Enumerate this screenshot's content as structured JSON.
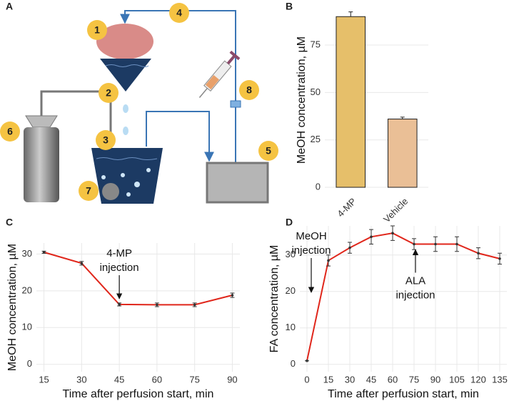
{
  "panel_labels": [
    "A",
    "B",
    "C",
    "D"
  ],
  "diagram": {
    "labels": [
      "1",
      "2",
      "3",
      "4",
      "5",
      "6",
      "7",
      "8"
    ]
  },
  "chart_data": [
    {
      "type": "bar",
      "ylabel": "MeOH concentration, µM",
      "categories": [
        "4-MP",
        "Vehicle"
      ],
      "values": [
        90,
        36
      ],
      "errors": [
        2.5,
        1
      ],
      "colors": [
        "#e6bf6a",
        "#eabf96"
      ],
      "ylim": [
        -3,
        95
      ],
      "yticks": [
        0,
        25,
        50,
        75
      ],
      "grid": true
    },
    {
      "type": "line",
      "xlabel": "Time after perfusion start, min",
      "ylabel": "MeOH concentration, µM",
      "x": [
        15,
        30,
        45,
        60,
        75,
        90
      ],
      "values": [
        30.5,
        27.5,
        16.3,
        16.2,
        16.2,
        18.8
      ],
      "errors": [
        0.3,
        0.5,
        0.4,
        0.5,
        0.5,
        0.6
      ],
      "color": "#e0261b",
      "xlim": [
        12,
        93
      ],
      "ylim": [
        -2,
        33
      ],
      "xticks": [
        15,
        30,
        45,
        60,
        75,
        90
      ],
      "yticks": [
        0,
        10,
        20,
        30
      ],
      "grid": true,
      "annotations": [
        {
          "text": [
            "4-MP",
            "injection"
          ],
          "x": 45,
          "position": "above"
        }
      ]
    },
    {
      "type": "line",
      "xlabel": "Time after perfusion start, min",
      "ylabel": "FA concentration, µM",
      "x": [
        0,
        15,
        30,
        45,
        60,
        75,
        90,
        105,
        120,
        135
      ],
      "values": [
        1,
        28.5,
        32,
        35,
        36,
        33,
        33,
        33,
        30.5,
        29
      ],
      "errors": [
        0,
        1.5,
        1.5,
        2,
        2,
        1.5,
        2,
        2,
        1.5,
        1.5
      ],
      "color": "#e0261b",
      "xlim": [
        -5,
        140
      ],
      "ylim": [
        -2,
        38
      ],
      "xticks": [
        0,
        15,
        30,
        45,
        60,
        75,
        90,
        105,
        120,
        135
      ],
      "yticks": [
        0,
        10,
        20,
        30
      ],
      "grid": true,
      "annotations": [
        {
          "text": [
            "MeOH",
            "injection"
          ],
          "x": 3,
          "position": "above"
        },
        {
          "text": [
            "ALA",
            "injection"
          ],
          "x": 76,
          "position": "below"
        }
      ]
    }
  ]
}
